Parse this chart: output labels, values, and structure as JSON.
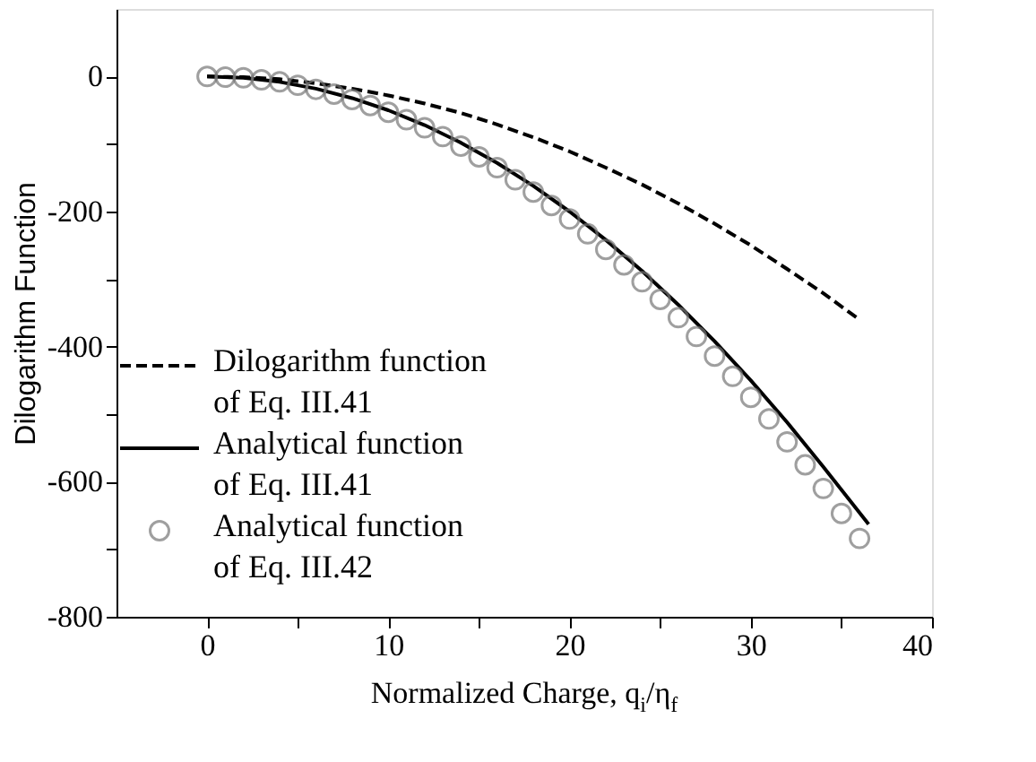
{
  "chart_data": {
    "type": "line",
    "xlabel": "Normalized Charge, q$_{i}$/η$_{f}$",
    "ylabel": "Dilogarithm Function",
    "xlim": [
      -5,
      40
    ],
    "xticks": [
      0,
      {
        "value": 5,
        "label": null
      },
      10,
      {
        "value": 15,
        "label": null
      },
      20,
      {
        "value": 25,
        "label": null
      },
      30,
      {
        "value": 35,
        "label": null
      },
      40
    ],
    "ylim": [
      -800,
      100
    ],
    "yticks": [
      -800,
      {
        "value": -700,
        "label": null
      },
      -600,
      {
        "value": -500,
        "label": null
      },
      -400,
      {
        "value": -300,
        "label": null
      },
      -200,
      {
        "value": -100,
        "label": null
      },
      0
    ],
    "grid": false,
    "legend": "bottom left",
    "series": [
      {
        "name": "Dilogarithm function of Eq. III.41",
        "type": "line",
        "line_style": "dashed",
        "color": "#000000",
        "x": [
          0,
          2,
          4,
          6,
          8,
          10,
          12,
          14,
          16,
          18,
          20,
          22,
          24,
          26,
          28,
          30,
          32,
          34,
          36
        ],
        "values": [
          0,
          -1,
          -4,
          -10,
          -18,
          -28,
          -40,
          -54,
          -71,
          -90,
          -111,
          -135,
          -160,
          -188,
          -218,
          -250,
          -285,
          -321,
          -360
        ]
      },
      {
        "name": "Analytical function of Eq. III.41",
        "type": "line",
        "line_style": "solid",
        "color": "#000000",
        "x": [
          0,
          2,
          4,
          6,
          8,
          10,
          12,
          14,
          16,
          18,
          20,
          22,
          24,
          26,
          28,
          30,
          32,
          34,
          36.5
        ],
        "values": [
          0,
          -2,
          -8,
          -18,
          -32,
          -50,
          -72,
          -98,
          -128,
          -162,
          -200,
          -242,
          -288,
          -338,
          -392,
          -450,
          -512,
          -578,
          -663
        ]
      },
      {
        "name": "Analytical function of Eq. III.42",
        "type": "scatter",
        "marker": "circle",
        "color": "#777777",
        "x": [
          0,
          1,
          2,
          3,
          4,
          5,
          6,
          7,
          8,
          9,
          10,
          11,
          12,
          13,
          14,
          15,
          16,
          17,
          18,
          19,
          20,
          21,
          22,
          23,
          24,
          25,
          26,
          27,
          28,
          29,
          30,
          31,
          32,
          33,
          34,
          35,
          36
        ],
        "values": [
          0,
          -1,
          -2,
          -5,
          -8,
          -13,
          -19,
          -26,
          -34,
          -43,
          -53,
          -64,
          -76,
          -89,
          -103,
          -119,
          -135,
          -153,
          -171,
          -191,
          -211,
          -233,
          -256,
          -279,
          -304,
          -330,
          -357,
          -385,
          -414,
          -444,
          -475,
          -507,
          -541,
          -575,
          -610,
          -647,
          -684
        ]
      }
    ]
  }
}
